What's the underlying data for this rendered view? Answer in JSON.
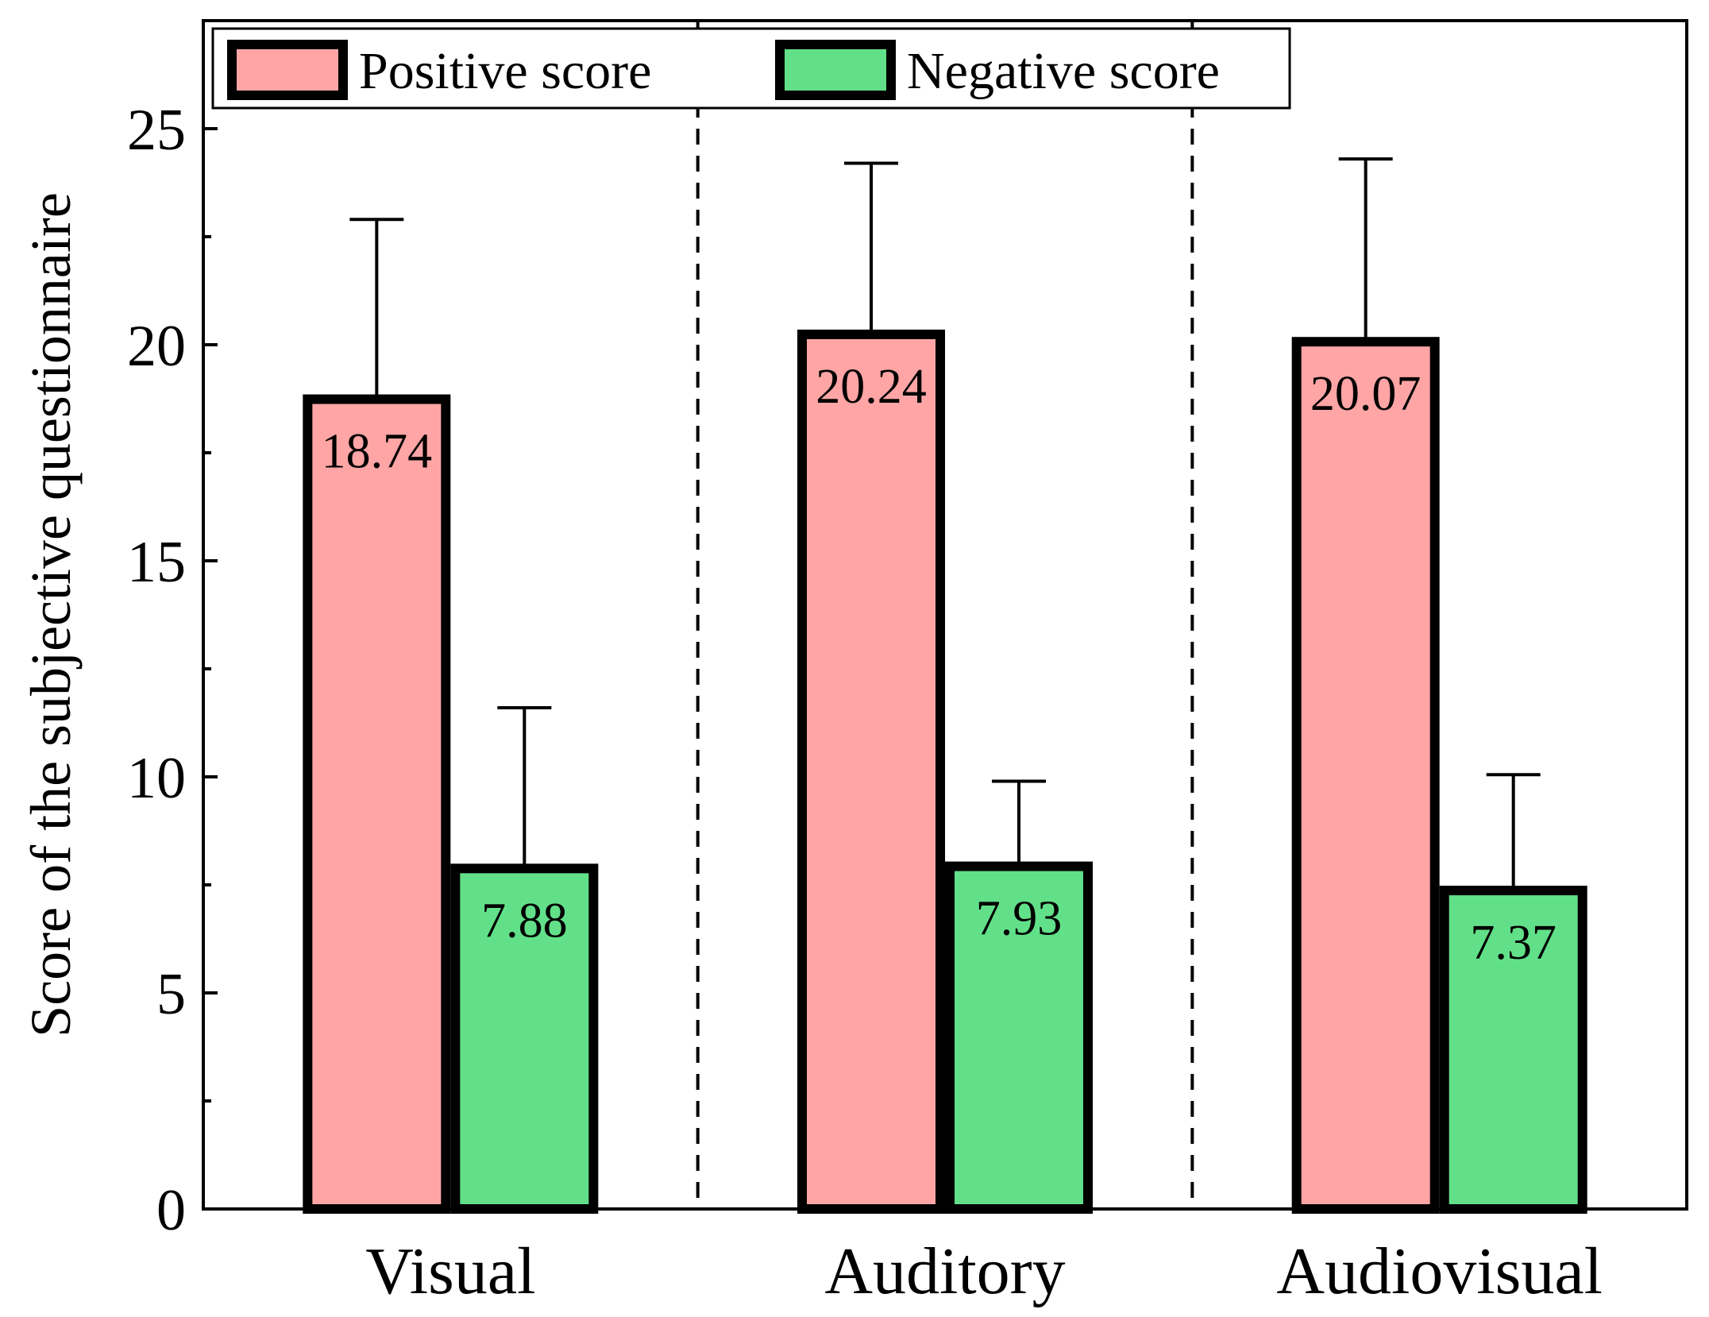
{
  "chart_data": {
    "type": "bar",
    "title": "",
    "xlabel": "",
    "ylabel": "Score of the subjective questionnaire",
    "ylim": [
      0,
      27.5
    ],
    "yticks": [
      0,
      5,
      10,
      15,
      20,
      25
    ],
    "yticks_display": [
      "0",
      "5",
      "10",
      "15",
      "20",
      "25"
    ],
    "minor_tick_step": 2.5,
    "categories": [
      "Visual",
      "Auditory",
      "Audiovisual"
    ],
    "group_separators": "dashed",
    "legend_position": "top-left",
    "series": [
      {
        "name": "Positive score",
        "color": "#ffa5a5",
        "values": [
          18.74,
          20.24,
          20.07
        ],
        "value_labels": [
          "18.74",
          "20.24",
          "20.07"
        ],
        "error_upper": [
          22.9,
          24.2,
          24.3
        ]
      },
      {
        "name": "Negative score",
        "color": "#62e089",
        "values": [
          7.88,
          7.93,
          7.37
        ],
        "value_labels": [
          "7.88",
          "7.93",
          "7.37"
        ],
        "error_upper": [
          11.6,
          9.9,
          10.05
        ]
      }
    ]
  }
}
